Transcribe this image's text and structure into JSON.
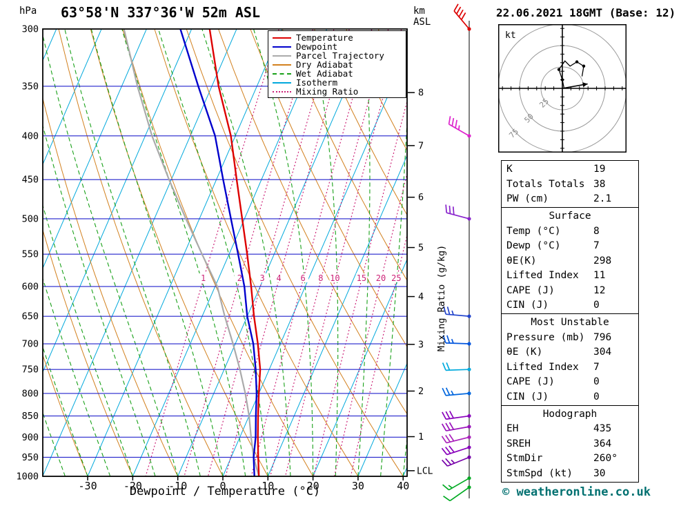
{
  "header": {
    "station_title": "63°58'N 337°36'W 52m ASL",
    "run_datetime": "22.06.2021 18GMT (Base: 12)",
    "pressure_unit": "hPa",
    "km_label": "km",
    "asl_label": "ASL",
    "copyright": "© weatheronline.co.uk"
  },
  "axes": {
    "xlabel": "Dewpoint / Temperature (°C)",
    "x_ticks_c": [
      -30,
      -20,
      -10,
      0,
      10,
      20,
      30,
      40
    ],
    "pressure_ticks_hpa": [
      300,
      350,
      400,
      450,
      500,
      550,
      600,
      650,
      700,
      750,
      800,
      850,
      900,
      950,
      1000
    ],
    "km_ticks": [
      1,
      2,
      3,
      4,
      5,
      6,
      7,
      8
    ],
    "lcl_label": "LCL",
    "mixing_ratio_axis_label": "Mixing Ratio (g/kg)"
  },
  "legend": {
    "items": [
      {
        "label": "Temperature",
        "color": "#dd0000",
        "dash": ""
      },
      {
        "label": "Dewpoint",
        "color": "#0000cc",
        "dash": ""
      },
      {
        "label": "Parcel Trajectory",
        "color": "#aaaaaa",
        "dash": ""
      },
      {
        "label": "Dry Adiabat",
        "color": "#d2801e",
        "dash": ""
      },
      {
        "label": "Wet Adiabat",
        "color": "#18a018",
        "dash": "5,3"
      },
      {
        "label": "Isotherm",
        "color": "#00a8dc",
        "dash": ""
      },
      {
        "label": "Mixing Ratio",
        "color": "#cc2277",
        "dash": "2,3"
      }
    ]
  },
  "colors": {
    "temperature": "#dd0000",
    "dewpoint": "#0000cc",
    "parcel": "#aaaaaa",
    "dry_adiabat": "#d2801e",
    "wet_adiabat": "#18a018",
    "isotherm": "#00a8dc",
    "mixing_ratio": "#cc2277",
    "pressure_grid": "#2222cc",
    "frame": "#000000",
    "copyright": "#007070",
    "hodograph_ring": "#999999"
  },
  "chart_data": {
    "type": "skewt_log_p_sounding",
    "pressure_axis_hpa": {
      "min": 300,
      "max": 1000,
      "scale": "log"
    },
    "temp_axis_c": {
      "min": -40,
      "max": 41
    },
    "mixing_ratio_lines_gkg": [
      1,
      2,
      3,
      4,
      6,
      8,
      10,
      15,
      20,
      25
    ],
    "lcl_hpa": 985,
    "sounding": {
      "pressure_hpa": [
        1000,
        950,
        900,
        850,
        800,
        750,
        700,
        650,
        600,
        550,
        500,
        450,
        400,
        350,
        300
      ],
      "temperature_c": [
        8,
        6,
        4,
        2,
        0,
        -2,
        -5,
        -8.5,
        -12,
        -16,
        -20.5,
        -25.5,
        -31,
        -38.5,
        -46
      ],
      "dewpoint_c": [
        7,
        5,
        3.5,
        1.5,
        -0.5,
        -3,
        -6,
        -10,
        -13.5,
        -18,
        -23,
        -28.5,
        -34.5,
        -43,
        -52.5
      ],
      "parcel_c": [
        8,
        5,
        2.5,
        0,
        -3,
        -6.5,
        -10.5,
        -15,
        -19.5,
        -26,
        -33,
        -40.5,
        -48.5,
        -56.5,
        -65
      ]
    },
    "wind_barbs": [
      {
        "p": 300,
        "dir": 320,
        "spd": 40,
        "color": "#dd0000"
      },
      {
        "p": 400,
        "dir": 300,
        "spd": 35,
        "color": "#dd22cc"
      },
      {
        "p": 500,
        "dir": 285,
        "spd": 30,
        "color": "#8822cc"
      },
      {
        "p": 650,
        "dir": 275,
        "spd": 25,
        "color": "#2244cc"
      },
      {
        "p": 700,
        "dir": 272,
        "spd": 25,
        "color": "#0055dd"
      },
      {
        "p": 750,
        "dir": 268,
        "spd": 20,
        "color": "#00aadd"
      },
      {
        "p": 800,
        "dir": 265,
        "spd": 25,
        "color": "#0066dd"
      },
      {
        "p": 850,
        "dir": 262,
        "spd": 30,
        "color": "#8800bb"
      },
      {
        "p": 875,
        "dir": 260,
        "spd": 30,
        "color": "#9911bb"
      },
      {
        "p": 900,
        "dir": 256,
        "spd": 30,
        "color": "#aa22bb"
      },
      {
        "p": 925,
        "dir": 252,
        "spd": 30,
        "color": "#8800bb"
      },
      {
        "p": 950,
        "dir": 248,
        "spd": 25,
        "color": "#7700aa"
      },
      {
        "p": 1005,
        "dir": 240,
        "spd": 15,
        "color": "#00aa22"
      },
      {
        "p": 1030,
        "dir": 235,
        "spd": 10,
        "color": "#00aa22"
      }
    ]
  },
  "hodograph": {
    "unit_label": "kt",
    "ring_labels_kt": [
      25,
      50,
      75
    ],
    "trace_uv_kt": [
      [
        2,
        0
      ],
      [
        0,
        10
      ],
      [
        -4,
        22
      ],
      [
        3,
        32
      ],
      [
        9,
        26
      ],
      [
        17,
        31
      ],
      [
        25,
        26
      ],
      [
        23,
        14
      ]
    ],
    "dot_uv_kt": [
      [
        0,
        10
      ],
      [
        -4,
        22
      ],
      [
        17,
        31
      ],
      [
        25,
        26
      ]
    ],
    "storm_motion": {
      "dir_deg": 260,
      "spd_kt": 30
    }
  },
  "tables": {
    "indices": {
      "rows": [
        [
          "K",
          "19"
        ],
        [
          "Totals Totals",
          "38"
        ],
        [
          "PW (cm)",
          "2.1"
        ]
      ]
    },
    "surface": {
      "title": "Surface",
      "rows": [
        [
          "Temp (°C)",
          "8"
        ],
        [
          "Dewp (°C)",
          "7"
        ],
        [
          "θE(K)",
          "298"
        ],
        [
          "Lifted Index",
          "11"
        ],
        [
          "CAPE (J)",
          "12"
        ],
        [
          "CIN (J)",
          "0"
        ]
      ]
    },
    "most_unstable": {
      "title": "Most Unstable",
      "rows": [
        [
          "Pressure (mb)",
          "796"
        ],
        [
          "θE (K)",
          "304"
        ],
        [
          "Lifted Index",
          "7"
        ],
        [
          "CAPE (J)",
          "0"
        ],
        [
          "CIN (J)",
          "0"
        ]
      ]
    },
    "hodograph_table": {
      "title": "Hodograph",
      "rows": [
        [
          "EH",
          "435"
        ],
        [
          "SREH",
          "364"
        ],
        [
          "StmDir",
          "260°"
        ],
        [
          "StmSpd (kt)",
          "30"
        ]
      ]
    }
  }
}
